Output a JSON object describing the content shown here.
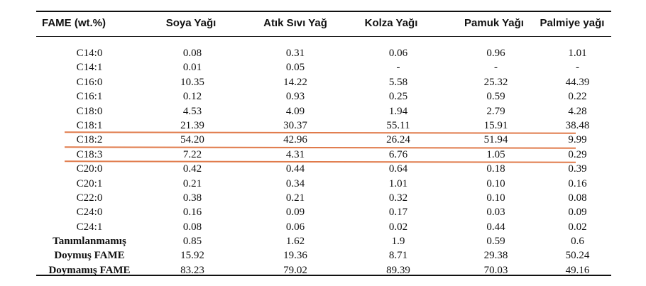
{
  "table": {
    "headers": [
      "FAME (wt.%)",
      "Soya Yağı",
      "Atık Sıvı Yağ",
      "Kolza Yağı",
      "Pamuk Yağı",
      "Palmiye yağı"
    ],
    "rows": [
      [
        "C14:0",
        "0.08",
        "0.31",
        "0.06",
        "0.96",
        "1.01"
      ],
      [
        "C14:1",
        "0.01",
        "0.05",
        "-",
        "-",
        "-"
      ],
      [
        "C16:0",
        "10.35",
        "14.22",
        "5.58",
        "25.32",
        "44.39"
      ],
      [
        "C16:1",
        "0.12",
        "0.93",
        "0.25",
        "0.59",
        "0.22"
      ],
      [
        "C18:0",
        "4.53",
        "4.09",
        "1.94",
        "2.79",
        "4.28"
      ],
      [
        "C18:1",
        "21.39",
        "30.37",
        "55.11",
        "15.91",
        "38.48"
      ],
      [
        "C18:2",
        "54.20",
        "42.96",
        "26.24",
        "51.94",
        "9.99"
      ],
      [
        "C18:3",
        "7.22",
        "4.31",
        "6.76",
        "1.05",
        "0.29"
      ],
      [
        "C20:0",
        "0.42",
        "0.44",
        "0.64",
        "0.18",
        "0.39"
      ],
      [
        "C20:1",
        "0.21",
        "0.34",
        "1.01",
        "0.10",
        "0.16"
      ],
      [
        "C22:0",
        "0.38",
        "0.21",
        "0.32",
        "0.10",
        "0.08"
      ],
      [
        "C24:0",
        "0.16",
        "0.09",
        "0.17",
        "0.03",
        "0.09"
      ],
      [
        "C24:1",
        "0.08",
        "0.06",
        "0.02",
        "0.44",
        "0.02"
      ],
      [
        "Tanımlanmamış",
        "0.85",
        "1.62",
        "1.9",
        "0.59",
        "0.6"
      ],
      [
        "Doymuş FAME",
        "15.92",
        "19.36",
        "8.71",
        "29.38",
        "50.24"
      ],
      [
        "Doymamış FAME",
        "83.23",
        "79.02",
        "89.39",
        "70.03",
        "49.16"
      ]
    ],
    "highlight_color": "#e07a4a",
    "rule_color": "#111111"
  }
}
